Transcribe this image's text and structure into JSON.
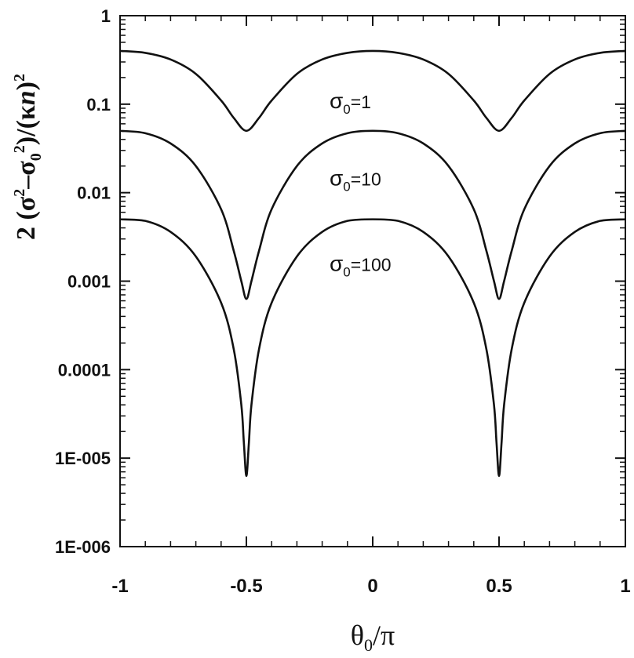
{
  "chart_data": {
    "type": "line",
    "title": "",
    "xlabel": {
      "base": "θ",
      "sub": "0",
      "rest": "/π"
    },
    "ylabel": {
      "parts": [
        "2 (σ",
        "2",
        "–σ",
        "0",
        "2",
        ")/(κ",
        "n",
        ")",
        "2"
      ]
    },
    "xlim": [
      -1,
      1
    ],
    "ylim": [
      1e-06,
      1
    ],
    "yscale": "log",
    "grid": false,
    "xticks": [
      -1,
      -0.5,
      0,
      0.5,
      1
    ],
    "xtick_labels": [
      "-1",
      "-0.5",
      "0",
      "0.5",
      "1"
    ],
    "yticks": [
      1,
      0.1,
      0.01,
      0.001,
      0.0001,
      1e-05,
      1e-06
    ],
    "ytick_labels": [
      "1",
      "0.1",
      "0.01",
      "0.001",
      "0.0001",
      "1E-005",
      "1E-006"
    ],
    "series": [
      {
        "label": {
          "base": "σ",
          "sub": "0",
          "rest": "=1"
        },
        "x": [
          -1,
          -0.9,
          -0.8,
          -0.7,
          -0.6,
          -0.55,
          -0.5,
          -0.45,
          -0.4,
          -0.3,
          -0.2,
          -0.1,
          0,
          0.1,
          0.2,
          0.3,
          0.4,
          0.45,
          0.5,
          0.55,
          0.6,
          0.7,
          0.8,
          0.9,
          1
        ],
        "values": [
          0.4,
          0.38,
          0.32,
          0.22,
          0.11,
          0.07,
          0.05,
          0.07,
          0.11,
          0.22,
          0.32,
          0.38,
          0.4,
          0.38,
          0.32,
          0.22,
          0.11,
          0.07,
          0.05,
          0.07,
          0.11,
          0.22,
          0.32,
          0.38,
          0.4
        ]
      },
      {
        "label": {
          "base": "σ",
          "sub": "0",
          "rest": "=10"
        },
        "x": [
          -1,
          -0.9,
          -0.8,
          -0.7,
          -0.6,
          -0.55,
          -0.52,
          -0.5,
          -0.48,
          -0.45,
          -0.4,
          -0.3,
          -0.2,
          -0.1,
          0,
          0.1,
          0.2,
          0.3,
          0.4,
          0.45,
          0.48,
          0.5,
          0.52,
          0.55,
          0.6,
          0.7,
          0.8,
          0.9,
          1
        ],
        "values": [
          0.05,
          0.047,
          0.036,
          0.02,
          0.0065,
          0.0022,
          0.001,
          0.00063,
          0.001,
          0.0022,
          0.0065,
          0.02,
          0.036,
          0.047,
          0.05,
          0.047,
          0.036,
          0.02,
          0.0065,
          0.0022,
          0.001,
          0.00063,
          0.001,
          0.0022,
          0.0065,
          0.02,
          0.036,
          0.047,
          0.05
        ]
      },
      {
        "label": {
          "base": "σ",
          "sub": "0",
          "rest": "=100"
        },
        "x": [
          -1,
          -0.9,
          -0.8,
          -0.7,
          -0.6,
          -0.55,
          -0.52,
          -0.51,
          -0.5,
          -0.49,
          -0.48,
          -0.45,
          -0.4,
          -0.3,
          -0.2,
          -0.1,
          0,
          0.1,
          0.2,
          0.3,
          0.4,
          0.45,
          0.48,
          0.49,
          0.5,
          0.51,
          0.52,
          0.55,
          0.6,
          0.7,
          0.8,
          0.9,
          1
        ],
        "values": [
          0.005,
          0.0048,
          0.0036,
          0.0019,
          0.00057,
          0.00017,
          4e-05,
          1.5e-05,
          6.3e-06,
          1.5e-05,
          4e-05,
          0.00017,
          0.00057,
          0.0019,
          0.0036,
          0.0048,
          0.005,
          0.0048,
          0.0036,
          0.0019,
          0.00057,
          0.00017,
          4e-05,
          1.5e-05,
          6.3e-06,
          1.5e-05,
          4e-05,
          0.00017,
          0.00057,
          0.0019,
          0.0036,
          0.0048,
          0.005
        ]
      }
    ],
    "label_positions": [
      {
        "x": 0,
        "y": 0.09
      },
      {
        "x": 0,
        "y": 0.012
      },
      {
        "x": 0,
        "y": 0.0013
      }
    ]
  }
}
